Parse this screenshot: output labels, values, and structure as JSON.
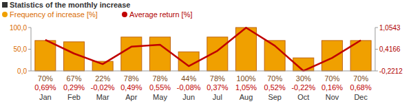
{
  "chart_data": {
    "type": "bar",
    "title": "Statistics of the monthly increase",
    "categories": [
      "Jan",
      "Feb",
      "Mar",
      "Apr",
      "May",
      "Jun",
      "Jul",
      "Aug",
      "Sep",
      "Oct",
      "Nov",
      "Dec"
    ],
    "series": [
      {
        "name": "Frequency of increase [%]",
        "type": "bar",
        "color": "#f0a000",
        "values": [
          70,
          67,
          22,
          78,
          78,
          44,
          78,
          100,
          70,
          30,
          70,
          70
        ],
        "value_labels": [
          "70%",
          "67%",
          "22%",
          "78%",
          "78%",
          "44%",
          "78%",
          "100%",
          "70%",
          "30%",
          "70%",
          "70%"
        ]
      },
      {
        "name": "Average return [%]",
        "type": "line",
        "color": "#c00000",
        "axis": "y2",
        "values": [
          0.69,
          0.29,
          -0.02,
          0.49,
          0.55,
          -0.08,
          0.37,
          1.05,
          0.52,
          -0.22,
          0.16,
          0.68
        ],
        "value_labels": [
          "0,69%",
          "0,29%",
          "-0,02%",
          "0,49%",
          "0,55%",
          "-0,08%",
          "0,37%",
          "1,05%",
          "0,52%",
          "-0,22%",
          "0,16%",
          "0,68%"
        ]
      }
    ],
    "ylim": [
      0,
      100
    ],
    "yticks": [
      {
        "value": 0,
        "label": "0,0"
      },
      {
        "value": 50,
        "label": "50,0"
      },
      {
        "value": 100,
        "label": "100,0"
      }
    ],
    "y2lim": [
      -0.2212,
      1.0543
    ],
    "y2ticks": [
      {
        "value": -0.2212,
        "label": "-0,2212"
      },
      {
        "value": 0.4166,
        "label": "0,4166"
      },
      {
        "value": 1.0543,
        "label": "1,0543"
      }
    ],
    "data_labels": true,
    "legend": "top-left",
    "grid": false
  }
}
